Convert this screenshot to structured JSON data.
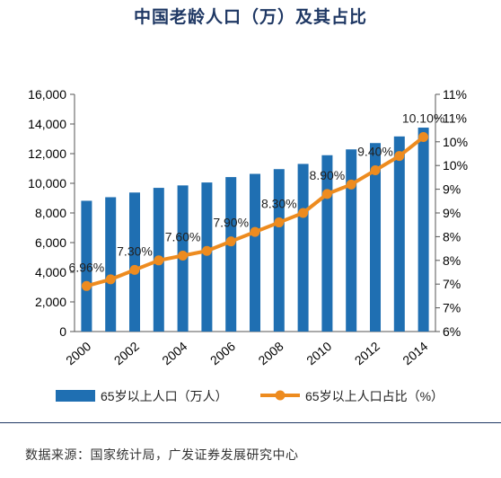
{
  "title": "中国老龄人口（万）及其占比",
  "source": "数据来源：国家统计局，广发证券发展研究中心",
  "colors": {
    "bar": "#1f6fb2",
    "line": "#ed8b1f",
    "title": "#1f3864"
  },
  "chart_data": {
    "type": "bar+line",
    "categories": [
      "2000",
      "2001",
      "2002",
      "2003",
      "2004",
      "2005",
      "2006",
      "2007",
      "2008",
      "2009",
      "2010",
      "2011",
      "2012",
      "2013",
      "2014"
    ],
    "x_tick_labels": [
      "2000",
      "2002",
      "2004",
      "2006",
      "2008",
      "2010",
      "2012",
      "2014"
    ],
    "y_left": {
      "ylim": [
        0,
        16000
      ],
      "ticks": [
        0,
        2000,
        4000,
        6000,
        8000,
        10000,
        12000,
        14000,
        16000
      ],
      "tick_labels": [
        "0",
        "2,000",
        "4,000",
        "6,000",
        "8,000",
        "10,000",
        "12,000",
        "14,000",
        "16,000"
      ]
    },
    "y_right": {
      "ylim": [
        6.0,
        11.0
      ],
      "ticks": [
        6.0,
        6.5,
        7.0,
        7.5,
        8.0,
        8.5,
        9.0,
        9.5,
        10.0,
        10.5,
        11.0
      ],
      "tick_labels": [
        "6%",
        "7%",
        "7%",
        "8%",
        "8%",
        "9%",
        "9%",
        "10%",
        "10%",
        "11%",
        "11%"
      ]
    },
    "series": [
      {
        "name": "65岁以上人口（万人）",
        "type": "bar",
        "axis": "left",
        "values": [
          8821,
          9062,
          9377,
          9692,
          9857,
          10055,
          10419,
          10636,
          10956,
          11307,
          11894,
          12288,
          12714,
          13161,
          13755
        ]
      },
      {
        "name": "65岁以上人口占比（%）",
        "type": "line",
        "axis": "right",
        "values": [
          6.96,
          7.1,
          7.3,
          7.5,
          7.6,
          7.7,
          7.9,
          8.1,
          8.3,
          8.5,
          8.9,
          9.1,
          9.4,
          9.7,
          10.1
        ],
        "data_labels": [
          {
            "index": 0,
            "text": "6.96%"
          },
          {
            "index": 2,
            "text": "7.30%"
          },
          {
            "index": 4,
            "text": "7.60%"
          },
          {
            "index": 6,
            "text": "7.90%"
          },
          {
            "index": 8,
            "text": "8.30%"
          },
          {
            "index": 10,
            "text": "8.90%"
          },
          {
            "index": 12,
            "text": "9.40%"
          },
          {
            "index": 14,
            "text": "10.10%"
          }
        ]
      }
    ],
    "legend": {
      "placement": "bottom"
    }
  }
}
